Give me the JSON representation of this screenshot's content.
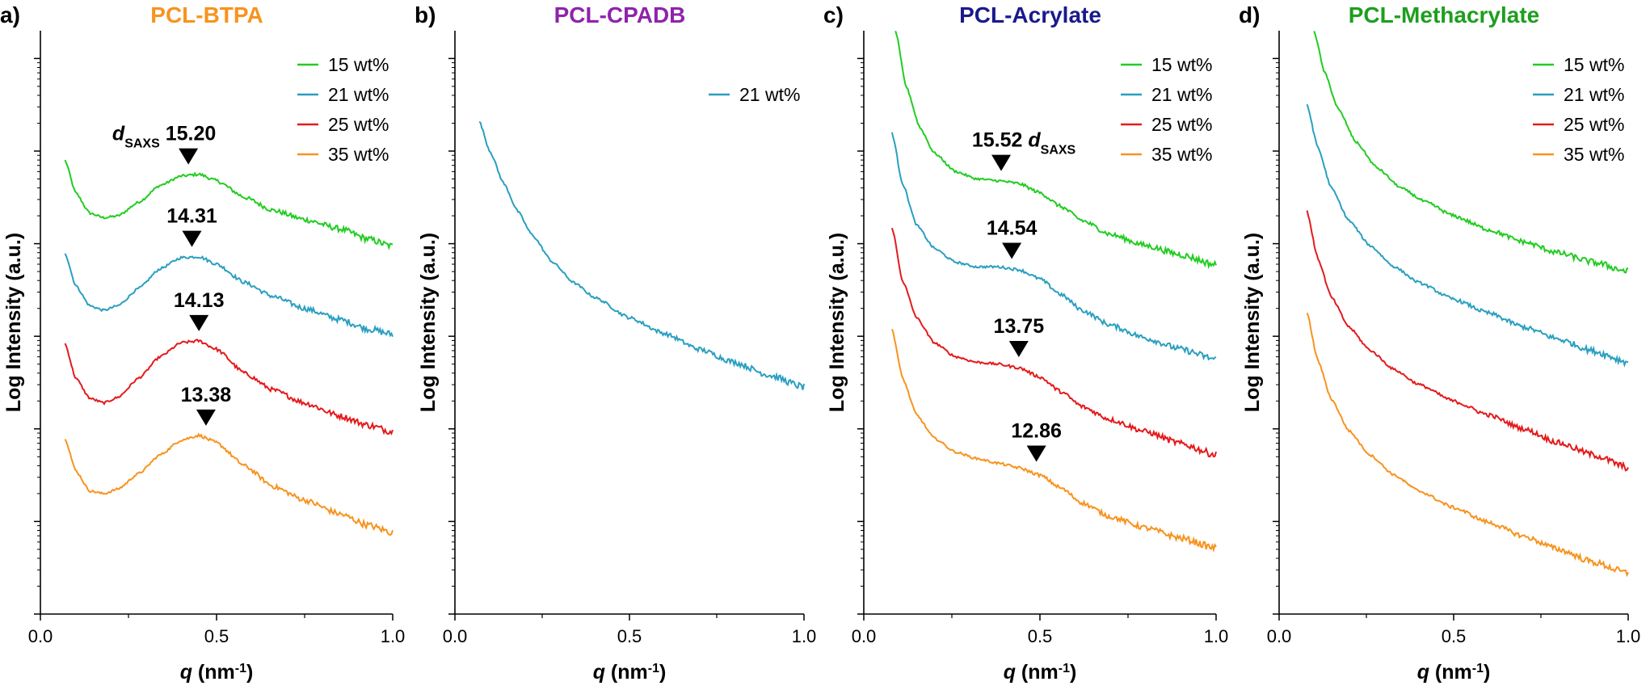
{
  "colors": {
    "15 wt%": "#22cc22",
    "21 wt%": "#2a9fc0",
    "25 wt%": "#e41a1c",
    "35 wt%": "#f7931e",
    "title_a": "#f7931e",
    "title_b": "#8e24aa",
    "title_c": "#1a1a8c",
    "title_d": "#1e9e1e"
  },
  "chart_data": [
    {
      "type": "line",
      "panel": "a)",
      "title": "PCL-BTPA",
      "xlabel_main": "q",
      "xlabel_unit": " (nm",
      "xlabel_sup": "-1",
      "xlabel_close": ")",
      "ylabel": "Log Intensity (a.u.)",
      "xlim": [
        0.0,
        1.0
      ],
      "xticks": [
        "0.0",
        "0.5",
        "1.0"
      ],
      "yscale": "log",
      "legend": [
        "15 wt%",
        "21 wt%",
        "25 wt%",
        "35 wt%"
      ],
      "legend_position": "top-right",
      "series": [
        {
          "name": "15 wt%",
          "x": [
            0.07,
            0.1,
            0.14,
            0.18,
            0.22,
            0.28,
            0.34,
            0.4,
            0.45,
            0.5,
            0.58,
            0.66,
            0.75,
            0.85,
            0.93,
            1.0
          ],
          "y": [
            4.9,
            4.55,
            4.33,
            4.28,
            4.3,
            4.45,
            4.63,
            4.73,
            4.75,
            4.68,
            4.5,
            4.36,
            4.26,
            4.16,
            4.05,
            3.97
          ]
        },
        {
          "name": "21 wt%",
          "x": [
            0.07,
            0.1,
            0.14,
            0.18,
            0.22,
            0.28,
            0.34,
            0.4,
            0.45,
            0.5,
            0.58,
            0.66,
            0.75,
            0.85,
            0.93,
            1.0
          ],
          "y": [
            3.9,
            3.55,
            3.33,
            3.28,
            3.33,
            3.52,
            3.73,
            3.85,
            3.86,
            3.78,
            3.58,
            3.43,
            3.3,
            3.18,
            3.08,
            3.02
          ]
        },
        {
          "name": "25 wt%",
          "x": [
            0.07,
            0.1,
            0.14,
            0.18,
            0.22,
            0.28,
            0.34,
            0.4,
            0.45,
            0.5,
            0.58,
            0.66,
            0.75,
            0.85,
            0.93,
            1.0
          ],
          "y": [
            2.92,
            2.55,
            2.33,
            2.28,
            2.34,
            2.55,
            2.78,
            2.93,
            2.95,
            2.86,
            2.6,
            2.42,
            2.28,
            2.14,
            2.04,
            1.97
          ]
        },
        {
          "name": "35 wt%",
          "x": [
            0.07,
            0.1,
            0.14,
            0.18,
            0.22,
            0.28,
            0.34,
            0.4,
            0.45,
            0.5,
            0.58,
            0.66,
            0.75,
            0.85,
            0.93,
            1.0
          ],
          "y": [
            1.9,
            1.55,
            1.33,
            1.3,
            1.35,
            1.52,
            1.72,
            1.88,
            1.93,
            1.85,
            1.6,
            1.38,
            1.23,
            1.08,
            0.96,
            0.88
          ]
        }
      ],
      "annotations": [
        {
          "prefix_italic": "d",
          "prefix_sub": "SAXS",
          "text": "15.20",
          "x": 0.42,
          "y": 4.75,
          "prefix": "before"
        },
        {
          "text": "14.31",
          "x": 0.43,
          "y": 3.86
        },
        {
          "text": "14.13",
          "x": 0.45,
          "y": 2.95
        },
        {
          "text": "13.38",
          "x": 0.47,
          "y": 1.93
        }
      ]
    },
    {
      "type": "line",
      "panel": "b)",
      "title": "PCL-CPADB",
      "xlabel_main": "q",
      "xlabel_unit": " (nm",
      "xlabel_sup": "-1",
      "xlabel_close": ")",
      "ylabel": "Log Intensity (a.u.)",
      "xlim": [
        0.0,
        1.0
      ],
      "xticks": [
        "0.0",
        "0.5",
        "1.0"
      ],
      "yscale": "log",
      "legend": [
        "21 wt%"
      ],
      "legend_position": "top-right",
      "series": [
        {
          "name": "21 wt%",
          "x": [
            0.07,
            0.1,
            0.14,
            0.18,
            0.22,
            0.28,
            0.34,
            0.4,
            0.5,
            0.6,
            0.7,
            0.8,
            0.9,
            1.0
          ],
          "y": [
            5.32,
            5.0,
            4.65,
            4.35,
            4.1,
            3.8,
            3.58,
            3.42,
            3.2,
            3.03,
            2.86,
            2.72,
            2.58,
            2.45
          ]
        }
      ],
      "annotations": []
    },
    {
      "type": "line",
      "panel": "c)",
      "title": "PCL-Acrylate",
      "xlabel_main": "q",
      "xlabel_unit": " (nm",
      "xlabel_sup": "-1",
      "xlabel_close": ")",
      "ylabel": "Log Intensity (a.u.)",
      "xlim": [
        0.0,
        1.0
      ],
      "xticks": [
        "0.0",
        "0.5",
        "1.0"
      ],
      "yscale": "log",
      "legend": [
        "15 wt%",
        "21 wt%",
        "25 wt%",
        "35 wt%"
      ],
      "legend_position": "top-right",
      "series": [
        {
          "name": "15 wt%",
          "x": [
            0.09,
            0.12,
            0.16,
            0.2,
            0.26,
            0.32,
            0.38,
            0.44,
            0.5,
            0.56,
            0.62,
            0.7,
            0.8,
            0.9,
            1.0
          ],
          "y": [
            6.3,
            5.7,
            5.25,
            4.98,
            4.78,
            4.7,
            4.68,
            4.65,
            4.55,
            4.4,
            4.25,
            4.1,
            3.98,
            3.88,
            3.77
          ]
        },
        {
          "name": "21 wt%",
          "x": [
            0.08,
            0.11,
            0.15,
            0.2,
            0.26,
            0.32,
            0.38,
            0.44,
            0.5,
            0.56,
            0.62,
            0.7,
            0.8,
            0.9,
            1.0
          ],
          "y": [
            5.2,
            4.65,
            4.2,
            3.95,
            3.8,
            3.75,
            3.75,
            3.72,
            3.62,
            3.45,
            3.28,
            3.12,
            2.98,
            2.86,
            2.75
          ]
        },
        {
          "name": "25 wt%",
          "x": [
            0.08,
            0.11,
            0.15,
            0.2,
            0.26,
            0.32,
            0.38,
            0.44,
            0.5,
            0.56,
            0.62,
            0.7,
            0.8,
            0.9,
            1.0
          ],
          "y": [
            4.18,
            3.6,
            3.2,
            2.93,
            2.78,
            2.72,
            2.7,
            2.66,
            2.56,
            2.4,
            2.24,
            2.1,
            1.97,
            1.84,
            1.72
          ]
        },
        {
          "name": "35 wt%",
          "x": [
            0.08,
            0.11,
            0.15,
            0.2,
            0.26,
            0.32,
            0.38,
            0.44,
            0.5,
            0.56,
            0.62,
            0.7,
            0.8,
            0.9,
            1.0
          ],
          "y": [
            3.08,
            2.55,
            2.15,
            1.9,
            1.75,
            1.68,
            1.63,
            1.58,
            1.5,
            1.36,
            1.2,
            1.05,
            0.93,
            0.82,
            0.71
          ]
        }
      ],
      "annotations": [
        {
          "text": "15.52",
          "suffix_italic": "d",
          "suffix_sub": "SAXS",
          "x": 0.39,
          "y": 4.68,
          "prefix": "after"
        },
        {
          "text": "14.54",
          "x": 0.42,
          "y": 3.73
        },
        {
          "text": "13.75",
          "x": 0.44,
          "y": 2.67
        },
        {
          "text": "12.86",
          "x": 0.49,
          "y": 1.54
        }
      ]
    },
    {
      "type": "line",
      "panel": "d)",
      "title": "PCL-Methacrylate",
      "xlabel_main": "q",
      "xlabel_unit": " (nm",
      "xlabel_sup": "-1",
      "xlabel_close": ")",
      "ylabel": "Log Intensity (a.u.)",
      "xlim": [
        0.0,
        1.0
      ],
      "xticks": [
        "0.0",
        "0.5",
        "1.0"
      ],
      "yscale": "log",
      "legend": [
        "15 wt%",
        "21 wt%",
        "25 wt%",
        "35 wt%"
      ],
      "legend_position": "top-right",
      "series": [
        {
          "name": "15 wt%",
          "x": [
            0.1,
            0.13,
            0.17,
            0.22,
            0.28,
            0.35,
            0.42,
            0.5,
            0.6,
            0.7,
            0.8,
            0.9,
            1.0
          ],
          "y": [
            6.3,
            5.85,
            5.45,
            5.1,
            4.82,
            4.6,
            4.45,
            4.3,
            4.15,
            4.02,
            3.9,
            3.8,
            3.7
          ]
        },
        {
          "name": "21 wt%",
          "x": [
            0.08,
            0.11,
            0.15,
            0.2,
            0.26,
            0.33,
            0.4,
            0.5,
            0.6,
            0.7,
            0.8,
            0.9,
            1.0
          ],
          "y": [
            5.5,
            5.05,
            4.6,
            4.25,
            3.98,
            3.75,
            3.58,
            3.4,
            3.25,
            3.1,
            2.97,
            2.84,
            2.72
          ]
        },
        {
          "name": "25 wt%",
          "x": [
            0.08,
            0.11,
            0.15,
            0.2,
            0.26,
            0.33,
            0.4,
            0.5,
            0.6,
            0.7,
            0.8,
            0.9,
            1.0
          ],
          "y": [
            4.35,
            3.85,
            3.42,
            3.1,
            2.85,
            2.64,
            2.48,
            2.3,
            2.15,
            2.0,
            1.85,
            1.72,
            1.58
          ]
        },
        {
          "name": "35 wt%",
          "x": [
            0.08,
            0.11,
            0.15,
            0.2,
            0.26,
            0.33,
            0.4,
            0.5,
            0.6,
            0.7,
            0.8,
            0.9,
            1.0
          ],
          "y": [
            3.25,
            2.75,
            2.32,
            1.98,
            1.72,
            1.5,
            1.33,
            1.15,
            0.99,
            0.84,
            0.7,
            0.56,
            0.44
          ]
        }
      ],
      "annotations": []
    }
  ]
}
